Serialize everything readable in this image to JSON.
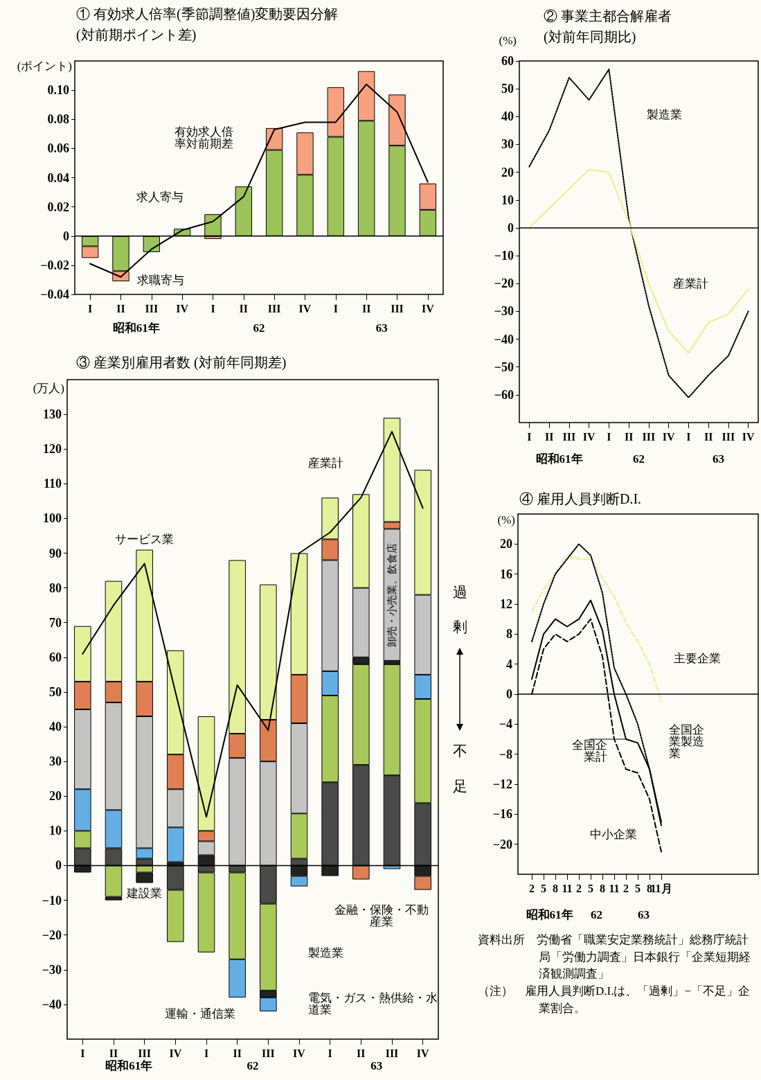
{
  "chart_data": [
    {
      "type": "bar",
      "title": "① 有効求人倍率(季節調整値)変動要因分解",
      "subtitle": "(対前期ポイント差)",
      "ylabel": "(ポイント)",
      "categories": [
        "I",
        "II",
        "III",
        "IV",
        "I",
        "II",
        "III",
        "IV",
        "I",
        "II",
        "III",
        "IV"
      ],
      "stacked": true,
      "marker": "none",
      "ylim": [
        -0.04,
        0.12
      ],
      "yticks": [
        {
          "value": -0.04,
          "label": "−0.04"
        },
        {
          "value": -0.02,
          "label": "−0.02"
        },
        0,
        0.02,
        0.04,
        0.06,
        0.08,
        {
          "value": 0.1,
          "label": "0.10"
        }
      ],
      "ref_lines": [
        {
          "axis": "y",
          "value": 0
        }
      ],
      "annotations": [
        "昭和61年",
        "62",
        "63"
      ],
      "series": [
        {
          "name": "求人寄与",
          "color": "#9cc45a",
          "values": [
            -0.007,
            -0.024,
            -0.011,
            0.005,
            0.015,
            0.034,
            0.059,
            0.042,
            0.068,
            0.079,
            0.062,
            0.018
          ]
        },
        {
          "name": "求職寄与",
          "color": "#f7a17f",
          "values": [
            -0.008,
            -0.007,
            null,
            null,
            -0.002,
            null,
            0.015,
            0.029,
            0.034,
            0.034,
            0.035,
            0.018
          ]
        },
        {
          "name": "有効求人倍率対前期差",
          "type": "line",
          "color": "#000000",
          "line_style": "solid",
          "values": [
            -0.019,
            -0.028,
            -0.009,
            0.004,
            0.01,
            0.027,
            0.073,
            0.078,
            0.078,
            0.104,
            0.085,
            0.037
          ]
        }
      ]
    },
    {
      "type": "line",
      "title": "② 事業主都合解雇者",
      "subtitle": "(対前年同期比)",
      "ylabel": "(%)",
      "categories": [
        "I",
        "II",
        "III",
        "IV",
        "I",
        "II",
        "III",
        "IV",
        "I",
        "II",
        "III",
        "IV"
      ],
      "marker": "none",
      "ylim": [
        -70,
        60
      ],
      "yticks": [
        {
          "value": -60,
          "label": "−60"
        },
        {
          "value": -50,
          "label": "−50"
        },
        {
          "value": -40,
          "label": "−40"
        },
        {
          "value": -30,
          "label": "−30"
        },
        {
          "value": -20,
          "label": "−20"
        },
        {
          "value": -10,
          "label": "−10"
        },
        0,
        10,
        20,
        30,
        40,
        50,
        60
      ],
      "ref_lines": [
        {
          "axis": "y",
          "value": 0
        }
      ],
      "annotations": [
        "昭和61年",
        "62",
        "63"
      ],
      "series": [
        {
          "name": "製造業",
          "color": "#000000",
          "line_style": "dotted",
          "values": [
            22,
            35,
            54,
            46,
            57,
            3,
            -28,
            -53,
            -61,
            -53,
            -46,
            -30
          ]
        },
        {
          "name": "産業計",
          "color": "#e6f08c",
          "line_style": "solid",
          "values": [
            0,
            7,
            14,
            21,
            20,
            2,
            -20,
            -37,
            -45,
            -34,
            -31,
            -22
          ]
        }
      ]
    },
    {
      "type": "bar",
      "title": "③ 産業別雇用者数 (対前年同期差)",
      "ylabel": "(万人)",
      "categories": [
        "I",
        "II",
        "III",
        "IV",
        "I",
        "II",
        "III",
        "IV",
        "I",
        "II",
        "III",
        "IV"
      ],
      "stacked": true,
      "marker": "none",
      "ylim": [
        -50,
        140
      ],
      "yticks": [
        {
          "value": -40,
          "label": "−40"
        },
        {
          "value": -30,
          "label": "−30"
        },
        {
          "value": -20,
          "label": "−20"
        },
        {
          "value": -10,
          "label": "−10"
        },
        0,
        10,
        20,
        30,
        40,
        50,
        60,
        70,
        80,
        90,
        100,
        110,
        120,
        130
      ],
      "ref_lines": [
        {
          "axis": "y",
          "value": 0
        }
      ],
      "annotations": [
        "昭和61年",
        "62",
        "63"
      ],
      "series": [
        {
          "name": "建設業",
          "color": "#4a4a4a",
          "values": [
            5,
            5,
            2,
            -7,
            -2,
            -2,
            -11,
            2,
            24,
            29,
            26,
            18
          ]
        },
        {
          "name": "製造業",
          "color": "#a9c95b",
          "values": [
            5,
            -9,
            -2,
            -15,
            -23,
            -25,
            -25,
            13,
            25,
            29,
            32,
            30
          ]
        },
        {
          "name": "電気・ガス・熱供給・水道業",
          "color": "#222222",
          "values": [
            -2,
            -1,
            -3,
            1,
            3,
            null,
            -2,
            -3,
            -3,
            2,
            1,
            -3
          ]
        },
        {
          "name": "運輸・通信業",
          "color": "#64aee6",
          "values": [
            12,
            11,
            3,
            10,
            null,
            -11,
            -4,
            -3,
            7,
            null,
            -1,
            7
          ]
        },
        {
          "name": "卸売・小売業、飲食店",
          "color": "#c4c4c4",
          "values": [
            23,
            31,
            38,
            11,
            4,
            31,
            30,
            26,
            32,
            20,
            38,
            23
          ]
        },
        {
          "name": "金融・保険・不動産業",
          "color": "#e07f52",
          "values": [
            8,
            6,
            10,
            10,
            3,
            7,
            12,
            14,
            6,
            -4,
            2,
            -4
          ]
        },
        {
          "name": "サービス業",
          "color": "#e3f29a",
          "values": [
            16,
            29,
            38,
            30,
            33,
            50,
            39,
            35,
            12,
            27,
            30,
            36
          ]
        },
        {
          "name": "産業計",
          "type": "line",
          "color": "#000000",
          "line_style": "solid",
          "values": [
            61,
            75,
            87,
            50,
            14,
            52,
            39,
            90,
            96,
            106,
            125,
            103
          ]
        }
      ]
    },
    {
      "type": "line",
      "title": "④ 雇用人員判断D.I.",
      "ylabel": "(%)",
      "categories": [
        "2",
        "5",
        "8",
        "11",
        "2",
        "5",
        "8",
        "11",
        "2",
        "5",
        "8",
        "11月"
      ],
      "marker": "none",
      "ylim": [
        -24,
        24
      ],
      "yticks": [
        {
          "value": -20,
          "label": "−20"
        },
        {
          "value": -16,
          "label": "−16"
        },
        {
          "value": -12,
          "label": "−12"
        },
        {
          "value": -8,
          "label": "−8"
        },
        {
          "value": -4,
          "label": "−4"
        },
        0,
        4,
        8,
        12,
        16,
        20
      ],
      "ref_lines": [
        {
          "axis": "y",
          "value": 0
        }
      ],
      "annotations": [
        "昭和61年",
        "62",
        "63"
      ],
      "series": [
        {
          "name": "主要企業",
          "color": "#e6f08c",
          "line_style": "dashed",
          "values": [
            11,
            14,
            16,
            18.5,
            18,
            18,
            15.5,
            13,
            9.5,
            7,
            4,
            -1
          ]
        },
        {
          "name": "全国企業製造業",
          "color": "#000000",
          "line_style": "dotted",
          "values": [
            7,
            12,
            16,
            18,
            20,
            18.5,
            13.5,
            3.5,
            0,
            -4,
            -10,
            -17
          ]
        },
        {
          "name": "全国企業計",
          "color": "#000000",
          "line_style": "solid",
          "values": [
            2,
            8,
            10,
            9,
            10,
            12.5,
            8.5,
            0,
            -6,
            -6.5,
            -10,
            -17.5
          ]
        },
        {
          "name": "中小企業",
          "color": "#000000",
          "line_style": "dashed",
          "values": [
            0,
            6,
            8,
            7,
            8,
            10,
            5,
            -6,
            -10,
            -10.5,
            -14,
            -21
          ]
        }
      ]
    },
    {
      "type": "other",
      "annotations": [
        "過剰",
        "不足"
      ]
    },
    {
      "type": "other",
      "annotations": [
        "資料出所　労働省「職業安定業務統計」総務庁統計局「労働力調査」日本銀行「企業短期経済観測調査」",
        "（注）　雇用人員判断D.I.は、「過剰」−「不足」企業割合。"
      ]
    }
  ]
}
